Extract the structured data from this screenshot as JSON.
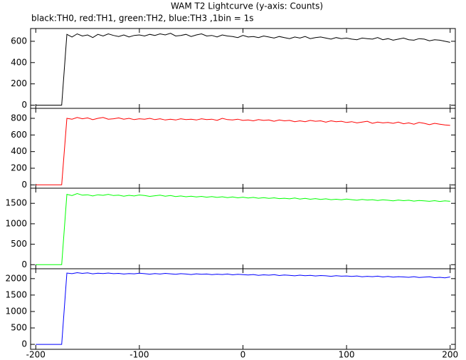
{
  "chart_data": [
    {
      "type": "line",
      "title": "WAM T2 Lightcurve (y-axis: Counts)",
      "subtitle": "black:TH0, red:TH1, green:TH2, blue:TH3 ,1bin = 1s",
      "ylim": [
        -30,
        720
      ],
      "yticks": [
        0,
        200,
        400,
        600
      ],
      "series": [
        {
          "color": "#000000",
          "values": [
            0,
            0,
            0,
            0,
            0,
            0,
            665,
            640,
            670,
            650,
            660,
            635,
            665,
            650,
            670,
            655,
            645,
            660,
            640,
            655,
            660,
            650,
            665,
            655,
            670,
            660,
            675,
            650,
            655,
            665,
            645,
            660,
            670,
            650,
            655,
            640,
            660,
            650,
            645,
            635,
            655,
            640,
            645,
            635,
            650,
            640,
            630,
            645,
            635,
            625,
            640,
            630,
            645,
            625,
            635,
            640,
            630,
            620,
            635,
            625,
            630,
            620,
            615,
            630,
            625,
            620,
            635,
            615,
            625,
            610,
            620,
            630,
            615,
            610,
            625,
            620,
            605,
            615,
            610,
            600,
            590
          ]
        }
      ]
    },
    {
      "type": "line",
      "ylim": [
        -40,
        920
      ],
      "yticks": [
        0,
        200,
        400,
        600,
        800
      ],
      "series": [
        {
          "color": "#ff0000",
          "values": [
            0,
            0,
            0,
            0,
            0,
            0,
            800,
            790,
            810,
            795,
            805,
            785,
            800,
            810,
            790,
            795,
            805,
            790,
            800,
            785,
            795,
            790,
            800,
            785,
            795,
            780,
            790,
            780,
            795,
            785,
            790,
            780,
            795,
            785,
            790,
            775,
            800,
            785,
            780,
            790,
            775,
            780,
            770,
            785,
            775,
            780,
            765,
            780,
            770,
            775,
            760,
            770,
            760,
            775,
            765,
            770,
            755,
            770,
            760,
            765,
            750,
            760,
            745,
            755,
            765,
            740,
            755,
            745,
            750,
            740,
            755,
            735,
            745,
            730,
            750,
            740,
            725,
            740,
            730,
            720,
            715
          ]
        }
      ]
    },
    {
      "type": "line",
      "ylim": [
        -100,
        1870
      ],
      "yticks": [
        0,
        500,
        1000,
        1500
      ],
      "series": [
        {
          "color": "#00ff00",
          "values": [
            0,
            0,
            0,
            0,
            0,
            0,
            1720,
            1690,
            1740,
            1700,
            1710,
            1680,
            1710,
            1695,
            1720,
            1690,
            1700,
            1675,
            1695,
            1680,
            1705,
            1690,
            1670,
            1685,
            1700,
            1675,
            1690,
            1665,
            1680,
            1660,
            1675,
            1655,
            1670,
            1650,
            1665,
            1645,
            1660,
            1640,
            1655,
            1635,
            1650,
            1630,
            1645,
            1625,
            1640,
            1620,
            1635,
            1615,
            1625,
            1610,
            1630,
            1605,
            1620,
            1600,
            1615,
            1595,
            1610,
            1590,
            1600,
            1585,
            1605,
            1590,
            1575,
            1595,
            1580,
            1590,
            1570,
            1585,
            1575,
            1560,
            1580,
            1565,
            1575,
            1555,
            1570,
            1560,
            1550,
            1565,
            1545,
            1560,
            1550
          ]
        }
      ]
    },
    {
      "type": "line",
      "ylim": [
        -150,
        2300
      ],
      "yticks": [
        0,
        500,
        1000,
        1500,
        2000
      ],
      "xlim": [
        -205,
        205
      ],
      "xticks": [
        -200,
        -100,
        0,
        100,
        200
      ],
      "x": [
        -200,
        -195,
        -190,
        -185,
        -180,
        -175,
        -170,
        -165,
        -160,
        -155,
        -150,
        -145,
        -140,
        -135,
        -130,
        -125,
        -120,
        -115,
        -110,
        -105,
        -100,
        -95,
        -90,
        -85,
        -80,
        -75,
        -70,
        -65,
        -60,
        -55,
        -50,
        -45,
        -40,
        -35,
        -30,
        -25,
        -20,
        -15,
        -10,
        -5,
        0,
        5,
        10,
        15,
        20,
        25,
        30,
        35,
        40,
        45,
        50,
        55,
        60,
        65,
        70,
        75,
        80,
        85,
        90,
        95,
        100,
        105,
        110,
        115,
        120,
        125,
        130,
        135,
        140,
        145,
        150,
        155,
        160,
        165,
        170,
        175,
        180,
        185,
        190,
        195,
        200
      ],
      "series": [
        {
          "color": "#0000ff",
          "values": [
            0,
            0,
            0,
            0,
            0,
            0,
            2170,
            2150,
            2180,
            2160,
            2175,
            2145,
            2165,
            2155,
            2170,
            2150,
            2160,
            2140,
            2155,
            2145,
            2165,
            2150,
            2135,
            2155,
            2140,
            2160,
            2145,
            2130,
            2150,
            2140,
            2125,
            2145,
            2130,
            2140,
            2120,
            2135,
            2125,
            2140,
            2115,
            2130,
            2120,
            2110,
            2125,
            2100,
            2115,
            2105,
            2120,
            2095,
            2110,
            2100,
            2085,
            2105,
            2090,
            2100,
            2080,
            2095,
            2085,
            2070,
            2090,
            2075,
            2080,
            2065,
            2080,
            2055,
            2070,
            2060,
            2075,
            2050,
            2065,
            2045,
            2060,
            2050,
            2040,
            2060,
            2035,
            2045,
            2055,
            2030,
            2040,
            2025,
            2050
          ]
        }
      ]
    }
  ]
}
